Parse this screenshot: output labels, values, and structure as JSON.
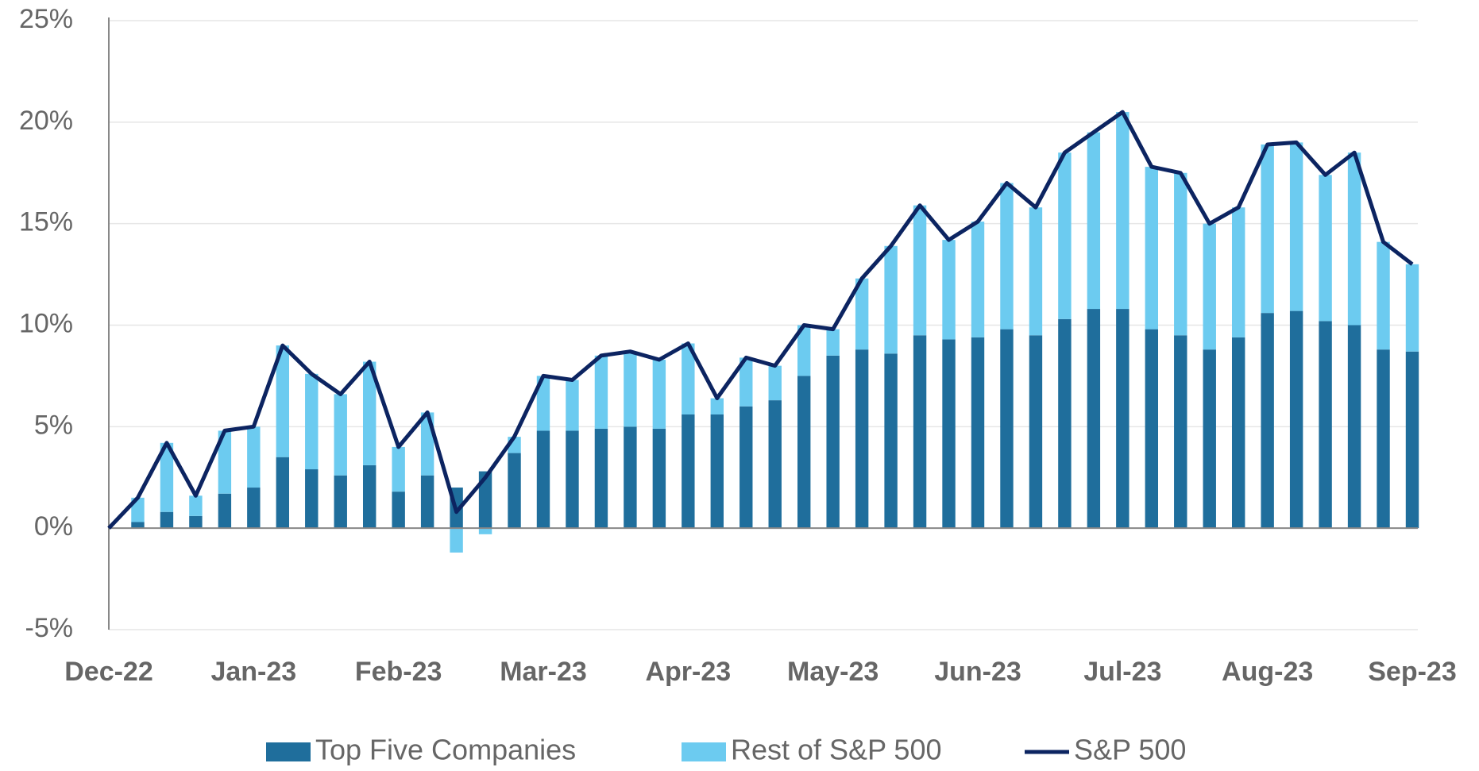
{
  "chart_data": {
    "type": "bar-line",
    "categories": [
      "Dec-22",
      null,
      null,
      null,
      null,
      "Jan-23",
      null,
      null,
      null,
      null,
      "Feb-23",
      null,
      null,
      null,
      null,
      "Mar-23",
      null,
      null,
      null,
      null,
      "Apr-23",
      null,
      null,
      null,
      null,
      "May-23",
      null,
      null,
      null,
      null,
      "Jun-23",
      null,
      null,
      null,
      null,
      "Jul-23",
      null,
      null,
      null,
      null,
      "Aug-23",
      null,
      null,
      null,
      null,
      "Sep-23"
    ],
    "series": [
      {
        "name": "Top Five Companies",
        "type": "bar",
        "color": "#1f6e9c",
        "values": [
          0,
          0.3,
          0.8,
          0.6,
          1.7,
          2.0,
          3.5,
          2.9,
          2.6,
          3.1,
          1.8,
          2.6,
          2.0,
          2.8,
          3.7,
          4.8,
          4.8,
          4.9,
          5.0,
          4.9,
          5.6,
          5.6,
          6.0,
          6.3,
          7.5,
          8.5,
          8.8,
          8.6,
          9.5,
          9.3,
          9.4,
          9.8,
          9.5,
          10.3,
          10.8,
          10.8,
          9.8,
          9.5,
          8.8,
          9.4,
          10.6,
          10.7,
          10.2,
          10.0,
          8.8,
          8.7
        ]
      },
      {
        "name": "Rest of S&P 500",
        "type": "bar",
        "color": "#6ccbf0",
        "values": [
          0,
          1.2,
          3.4,
          1.0,
          3.1,
          3.0,
          5.5,
          4.7,
          4.0,
          5.1,
          2.2,
          3.1,
          -1.2,
          -0.3,
          0.8,
          2.7,
          2.5,
          3.6,
          3.7,
          3.4,
          3.5,
          0.8,
          2.4,
          1.7,
          2.5,
          1.3,
          3.5,
          5.3,
          6.4,
          4.9,
          5.7,
          7.2,
          6.3,
          8.2,
          8.7,
          9.7,
          8.0,
          8.0,
          6.2,
          6.4,
          8.3,
          8.3,
          7.2,
          8.5,
          5.3,
          4.3
        ]
      },
      {
        "name": "S&P 500",
        "type": "line",
        "color": "#0c2461",
        "values": [
          0,
          1.5,
          4.2,
          1.6,
          4.8,
          5.0,
          9.0,
          7.6,
          6.6,
          8.2,
          4.0,
          5.7,
          0.8,
          2.5,
          4.5,
          7.5,
          7.3,
          8.5,
          8.7,
          8.3,
          9.1,
          6.4,
          8.4,
          8.0,
          10.0,
          9.8,
          12.3,
          13.9,
          15.9,
          14.2,
          15.1,
          17.0,
          15.8,
          18.5,
          19.5,
          20.5,
          17.8,
          17.5,
          15.0,
          15.8,
          18.9,
          19.0,
          17.4,
          18.5,
          14.1,
          13.0
        ]
      }
    ],
    "ylim": [
      -5,
      25
    ],
    "yticks": [
      {
        "value": -5,
        "label": "-5%"
      },
      {
        "value": 0,
        "label": "0%"
      },
      {
        "value": 5,
        "label": "5%"
      },
      {
        "value": 10,
        "label": "10%"
      },
      {
        "value": 15,
        "label": "15%"
      },
      {
        "value": 20,
        "label": "20%"
      },
      {
        "value": 25,
        "label": "25%"
      }
    ],
    "grid": true,
    "legend": "bottom"
  }
}
